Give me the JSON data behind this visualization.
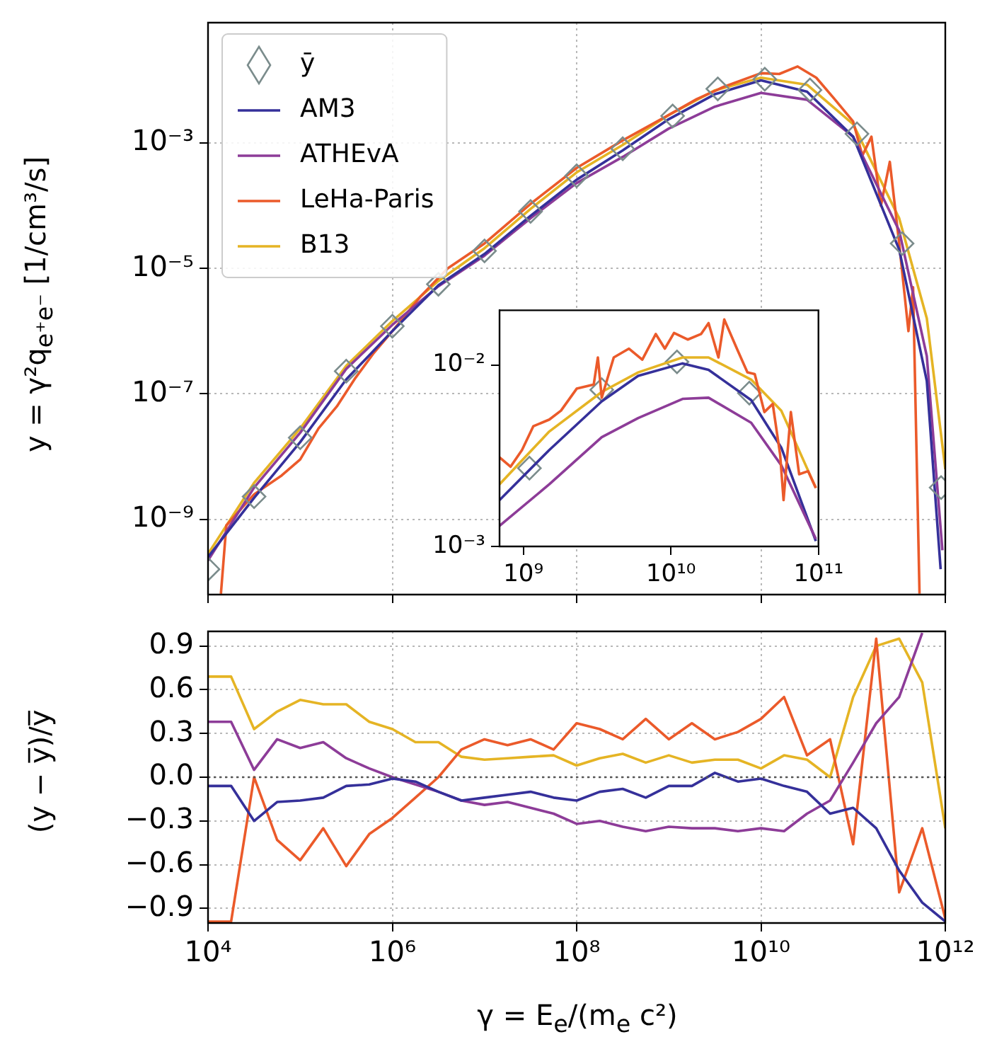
{
  "chart_data": [
    {
      "type": "line",
      "ylabel": "y = γ²q$_{e⁺e⁻}$ [1/cm³/s]",
      "log": "xy",
      "grid": true,
      "legend": "top left",
      "tick_labels": "y",
      "xlim": [
        10000.0,
        1000000000000.0
      ],
      "ylim": [
        6.3e-11,
        0.083
      ],
      "xticks": [
        {
          "value": 10000.0,
          "label": null
        },
        {
          "value": 1000000.0,
          "label": null
        },
        {
          "value": 100000000.0,
          "label": null
        },
        {
          "value": 10000000000.0,
          "label": null
        },
        {
          "value": 1000000000000.0,
          "label": null
        }
      ],
      "yticks": [
        {
          "value": 1e-09,
          "label": "10⁻⁹"
        },
        {
          "value": 1e-07,
          "label": "10⁻⁷"
        },
        {
          "value": 1e-05,
          "label": "10⁻⁵"
        },
        {
          "value": 0.001,
          "label": "10⁻³"
        }
      ],
      "series": [
        {
          "name": "ȳ",
          "type": "scatter",
          "marker": "diamond",
          "color": "#7b8c8c",
          "x": [
            10000.0,
            31600.0,
            100000.0,
            316000.0,
            1000000.0,
            3160000.0,
            10000000.0,
            31600000.0,
            100000000.0,
            316000000.0,
            1100000000.0,
            3400000000.0,
            11000000000.0,
            34000000000.0,
            110000000000.0,
            340000000000.0,
            900000000000.0
          ],
          "values": [
            1.6e-10,
            2.3e-09,
            2e-08,
            2.3e-07,
            1.2e-06,
            5.6e-06,
            1.9e-05,
            8.1e-05,
            0.0003,
            0.00081,
            0.0027,
            0.0073,
            0.0104,
            0.007,
            0.0014,
            2.5e-05,
            3.2e-09
          ]
        },
        {
          "name": "AM3",
          "color": "#35309a",
          "x": [
            10000.0,
            31600.0,
            100000.0,
            316000.0,
            1000000.0,
            3160000.0,
            10000000.0,
            31600000.0,
            100000000.0,
            316000000.0,
            1000000000.0,
            3160000000.0,
            10000000000.0,
            31600000000.0,
            100000000000.0,
            316000000000.0,
            630000000000.0,
            890000000000.0
          ],
          "values": [
            2.5e-10,
            2.2e-09,
            1.7e-08,
            1.7e-07,
            1e-06,
            5.4e-06,
            1.7e-05,
            6.9e-05,
            0.00026,
            0.00076,
            0.0024,
            0.006,
            0.01,
            0.0066,
            0.00126,
            2e-05,
            1.6e-07,
            1.6e-10
          ]
        },
        {
          "name": "ATHEvA",
          "color": "#8d3c98",
          "x": [
            10000.0,
            31600.0,
            100000.0,
            316000.0,
            1000000.0,
            3160000.0,
            10000000.0,
            31600000.0,
            100000000.0,
            316000000.0,
            1000000000.0,
            3160000000.0,
            10000000000.0,
            31600000000.0,
            100000000000.0,
            316000000000.0,
            630000000000.0,
            930000000000.0
          ],
          "values": [
            2.2e-10,
            3.2e-09,
            2.4e-08,
            2.5e-07,
            1.26e-06,
            5.2e-06,
            1.6e-05,
            6.3e-05,
            0.00023,
            0.0006,
            0.0017,
            0.0038,
            0.0063,
            0.0049,
            0.00126,
            4e-05,
            4e-07,
            3.2e-10
          ]
        },
        {
          "name": "LeHa-Paris",
          "color": "#eb5a2a",
          "x": [
            13800.0,
            15800.0,
            31600.0,
            63000.0,
            100000.0,
            158000.0,
            250000.0,
            398000.0,
            630000.0,
            1000000.0,
            2000000.0,
            3980000.0,
            10000000.0,
            31600000.0,
            100000000.0,
            316000000.0,
            1000000000.0,
            2000000000.0,
            3980000000.0,
            10000000000.0,
            15800000000.0,
            25000000000.0,
            39800000000.0,
            63000000000.0,
            100000000000.0,
            126000000000.0,
            158000000000.0,
            200000000000.0,
            250000000000.0,
            316000000000.0,
            398000000000.0,
            447000000000.0,
            525000000000.0
          ],
          "values": [
            6.5e-11,
            8e-10,
            2.5e-09,
            5e-09,
            9e-09,
            2.8e-08,
            6.3e-08,
            1.8e-07,
            4.5e-07,
            1e-06,
            3.5e-06,
            1e-05,
            2.5e-05,
            0.000107,
            0.0004,
            0.0011,
            0.0028,
            0.005,
            0.0079,
            0.013,
            0.0126,
            0.0166,
            0.011,
            0.005,
            0.0022,
            0.00063,
            0.00126,
            0.0001,
            0.0005,
            2.5e-05,
            1e-06,
            5e-06,
            6.5e-11
          ]
        },
        {
          "name": "B13",
          "color": "#e5b424",
          "x": [
            10000.0,
            31600.0,
            100000.0,
            316000.0,
            1000000.0,
            3160000.0,
            10000000.0,
            31600000.0,
            100000000.0,
            316000000.0,
            1000000000.0,
            3160000000.0,
            10000000000.0,
            31600000000.0,
            100000000000.0,
            316000000000.0,
            630000000000.0,
            1000000000000.0
          ],
          "values": [
            2.8e-10,
            3.8e-09,
            2.8e-08,
            2.8e-07,
            1.45e-06,
            6.3e-06,
            2.1e-05,
            8.9e-05,
            0.00034,
            0.00093,
            0.0028,
            0.0069,
            0.011,
            0.0085,
            0.002,
            6.3e-05,
            1.6e-06,
            6.3e-09
          ]
        }
      ]
    },
    {
      "type": "line",
      "log": "xy",
      "xlim": [
        690000000.0,
        100000000000.0
      ],
      "ylim": [
        0.001,
        0.02
      ],
      "xticks": [
        {
          "value": 1000000000.0,
          "label": "10⁹"
        },
        {
          "value": 10000000000.0,
          "label": "10¹⁰"
        },
        {
          "value": 100000000000.0,
          "label": "10¹¹"
        }
      ],
      "yticks": [
        {
          "value": 0.001,
          "label": "10⁻³"
        },
        {
          "value": 0.01,
          "label": "10⁻²"
        }
      ],
      "series": [
        {
          "color": "#eb5a2a",
          "x": [
            690000000.0,
            820000000.0,
            980000000.0,
            1170000000.0,
            1500000000.0,
            1800000000.0,
            2300000000.0,
            3000000000.0,
            3200000000.0,
            3400000000.0,
            4100000000.0,
            5200000000.0,
            6400000000.0,
            7900000000.0,
            9100000000.0,
            10500000000.0,
            13000000000.0,
            16000000000.0,
            18000000000.0,
            21000000000.0,
            23000000000.0,
            28000000000.0,
            33000000000.0,
            37000000000.0,
            43000000000.0,
            49000000000.0,
            55000000000.0,
            58000000000.0,
            65000000000.0,
            74000000000.0,
            85000000000.0,
            96000000000.0
          ],
          "values": [
            0.0031,
            0.00275,
            0.0034,
            0.0046,
            0.005,
            0.0056,
            0.0074,
            0.0078,
            0.011,
            0.0066,
            0.011,
            0.0123,
            0.0107,
            0.0148,
            0.0123,
            0.015,
            0.0138,
            0.0148,
            0.017,
            0.011,
            0.0178,
            0.0123,
            0.0091,
            0.0089,
            0.0055,
            0.0061,
            0.0032,
            0.0018,
            0.0055,
            0.0025,
            0.0026,
            0.0021
          ]
        },
        {
          "color": "#e5b424",
          "x": [
            690000000.0,
            1500000000.0,
            3400000000.0,
            6000000000.0,
            12000000000.0,
            18000000000.0,
            35000000000.0,
            56000000000.0,
            96000000000.0
          ],
          "values": [
            0.0022,
            0.0043,
            0.0071,
            0.0091,
            0.011,
            0.011,
            0.0083,
            0.0056,
            0.0021
          ]
        },
        {
          "color": "#8d3c98",
          "x": [
            690000000.0,
            1500000000.0,
            3400000000.0,
            6000000000.0,
            12000000000.0,
            18000000000.0,
            35000000000.0,
            56000000000.0,
            96000000000.0
          ],
          "values": [
            0.0013,
            0.0022,
            0.004,
            0.0051,
            0.0065,
            0.0066,
            0.0048,
            0.0028,
            0.0011
          ]
        },
        {
          "color": "#35309a",
          "x": [
            690000000.0,
            1500000000.0,
            3400000000.0,
            6000000000.0,
            12000000000.0,
            18000000000.0,
            35000000000.0,
            56000000000.0,
            96000000000.0
          ],
          "values": [
            0.0018,
            0.0034,
            0.0063,
            0.0087,
            0.0102,
            0.0094,
            0.0064,
            0.0035,
            0.00107
          ]
        },
        {
          "type": "scatter",
          "marker": "diamond",
          "color": "#7b8c8c",
          "x": [
            1100000000.0,
            3400000000.0,
            11000000000.0,
            34000000000.0
          ],
          "values": [
            0.0027,
            0.0073,
            0.0104,
            0.007
          ]
        }
      ]
    },
    {
      "type": "line",
      "xlabel": "γ = E$_{e}$/(m$_{e}$ c²)",
      "ylabel": "(y − y̅)/y̅",
      "log": "x",
      "grid": true,
      "xlim": [
        10000.0,
        1000000000000.0
      ],
      "ylim": [
        -1,
        1
      ],
      "xticks": [
        {
          "value": 10000.0,
          "label": "10⁴"
        },
        {
          "value": 1000000.0,
          "label": "10⁶"
        },
        {
          "value": 100000000.0,
          "label": "10⁸"
        },
        {
          "value": 10000000000.0,
          "label": "10¹⁰"
        },
        {
          "value": 1000000000000.0,
          "label": "10¹²"
        }
      ],
      "yticks": [
        {
          "value": -0.9,
          "label": "−0.9"
        },
        {
          "value": -0.6,
          "label": "−0.6"
        },
        {
          "value": -0.3,
          "label": "−0.3"
        },
        {
          "value": 0,
          "label": "0.0"
        },
        0.3,
        0.6,
        0.9
      ],
      "ref_lines": [
        {
          "axis": "y",
          "value": 0,
          "color": "#555555",
          "line_style": "dotted"
        }
      ],
      "x": [
        10000.0,
        17800.0,
        31600.0,
        56200.0,
        100000.0,
        178000.0,
        316000.0,
        562000.0,
        1000000.0,
        1780000.0,
        3160000.0,
        5620000.0,
        10000000.0,
        17800000.0,
        31600000.0,
        56200000.0,
        100000000.0,
        178000000.0,
        316000000.0,
        562000000.0,
        1000000000.0,
        1780000000.0,
        3160000000.0,
        5620000000.0,
        10000000000.0,
        17800000000.0,
        31600000000.0,
        56200000000.0,
        100000000000.0,
        178000000000.0,
        316000000000.0,
        562000000000.0,
        1000000000000.0
      ],
      "series": [
        {
          "color": "#35309a",
          "values": [
            -0.06,
            -0.06,
            -0.3,
            -0.17,
            -0.16,
            -0.14,
            -0.06,
            -0.05,
            -0.01,
            -0.03,
            -0.1,
            -0.16,
            -0.14,
            -0.12,
            -0.1,
            -0.14,
            -0.16,
            -0.1,
            -0.08,
            -0.14,
            -0.06,
            -0.06,
            0.03,
            -0.03,
            -0.01,
            -0.06,
            -0.1,
            -0.25,
            -0.21,
            -0.35,
            -0.64,
            -0.86,
            -0.99
          ]
        },
        {
          "color": "#8d3c98",
          "values": [
            0.38,
            0.38,
            0.05,
            0.26,
            0.2,
            0.24,
            0.13,
            0.06,
            0,
            -0.05,
            -0.1,
            -0.16,
            -0.19,
            -0.17,
            -0.21,
            -0.25,
            -0.32,
            -0.3,
            -0.34,
            -0.37,
            -0.34,
            -0.35,
            -0.35,
            -0.37,
            -0.35,
            -0.37,
            -0.25,
            -0.16,
            0.1,
            0.37,
            0.55,
            0.99,
            null
          ]
        },
        {
          "color": "#eb5a2a",
          "values": [
            -0.99,
            -0.99,
            0,
            -0.43,
            -0.57,
            -0.35,
            -0.61,
            -0.39,
            -0.28,
            -0.14,
            0,
            0.19,
            0.26,
            0.22,
            0.26,
            0.19,
            0.37,
            0.33,
            0.26,
            0.4,
            0.26,
            0.37,
            0.26,
            0.31,
            0.4,
            0.55,
            0.15,
            0.26,
            -0.46,
            0.95,
            -0.79,
            -0.35,
            -0.97
          ]
        },
        {
          "color": "#e5b424",
          "values": [
            0.69,
            0.69,
            0.33,
            0.45,
            0.53,
            0.5,
            0.5,
            0.38,
            0.33,
            0.24,
            0.24,
            0.14,
            0.12,
            0.13,
            0.14,
            0.15,
            0.08,
            0.13,
            0.16,
            0.1,
            0.15,
            0.1,
            0.12,
            0.12,
            0.06,
            0.15,
            0.12,
            0,
            0.55,
            0.9,
            0.95,
            0.65,
            -0.35
          ]
        }
      ]
    }
  ]
}
